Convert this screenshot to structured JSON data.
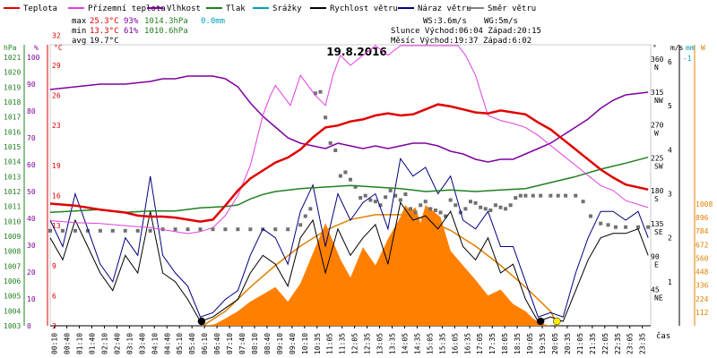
{
  "chart_data": {
    "type": "line",
    "title": "19.8.2016",
    "xlabel": "čas",
    "x_ticks": [
      "00:10",
      "00:40",
      "01:10",
      "01:40",
      "02:10",
      "02:40",
      "03:10",
      "03:40",
      "04:10",
      "04:40",
      "05:10",
      "05:40",
      "06:10",
      "06:40",
      "07:10",
      "07:40",
      "08:10",
      "08:40",
      "09:10",
      "09:40",
      "10:10",
      "10:35",
      "11:05",
      "11:35",
      "12:05",
      "12:35",
      "13:05",
      "13:35",
      "14:05",
      "14:35",
      "15:05",
      "15:35",
      "16:05",
      "16:35",
      "17:05",
      "17:35",
      "18:05",
      "18:35",
      "19:05",
      "19:35",
      "20:05",
      "20:35",
      "21:05",
      "21:35",
      "22:05",
      "22:35",
      "23:05",
      "23:35"
    ],
    "legend": [
      {
        "name": "Teplota",
        "color": "#e00000"
      },
      {
        "name": "Přízemní teplota",
        "color": "#e040e0"
      },
      {
        "name": "Vlhkost",
        "color": "#8000a0"
      },
      {
        "name": "Tlak",
        "color": "#208020"
      },
      {
        "name": "Srážky",
        "color": "#00a0c0"
      },
      {
        "name": "Rychlost větru",
        "color": "#000000"
      },
      {
        "name": "Náraz větru",
        "color": "#000080"
      },
      {
        "name": "Směr větru",
        "color": "#808080"
      }
    ],
    "stats": {
      "max_label": "max",
      "min_label": "min",
      "avg_label": "avg",
      "max_temp": "25.3°C",
      "max_hum": "93%",
      "max_press": "1014.3hPa",
      "max_rain": "0.0mm",
      "min_temp": "13.3°C",
      "min_hum": "61%",
      "min_press": "1010.6hPa",
      "avg_temp": "19.7°C",
      "ws": "WS:3.6m/s",
      "wg": "WG:5m/s",
      "sun": "Slunce Východ:06:04  Západ:20:15",
      "moon": "Měsíc  Východ:19:37  Západ:6:02"
    },
    "axes": {
      "hpa": {
        "label": "hPa",
        "ticks": [
          "1003",
          "1004",
          "1005",
          "1006",
          "1007",
          "1008",
          "1009",
          "1010",
          "1011",
          "1012",
          "1013",
          "1014",
          "1015",
          "1016",
          "1017",
          "1018",
          "1019",
          "1020",
          "1021"
        ],
        "range": [
          1003,
          1021.5
        ]
      },
      "humidity": {
        "label": "%",
        "ticks": [
          "0",
          "10",
          "20",
          "30",
          "40",
          "50",
          "60",
          "70",
          "80",
          "90",
          "100"
        ],
        "range": [
          0,
          105
        ]
      },
      "temp": {
        "label": "°C",
        "ticks": [
          "3",
          "6",
          "9",
          "13",
          "16",
          "19",
          "23",
          "26",
          "29",
          "32"
        ],
        "range": [
          3,
          33
        ]
      },
      "direction": {
        "label": "°",
        "ticks": [
          {
            "v": "45",
            "d": "NE"
          },
          {
            "v": "90",
            "d": "E"
          },
          {
            "v": "135",
            "d": "SE"
          },
          {
            "v": "180",
            "d": "S"
          },
          {
            "v": "225",
            "d": "SW"
          },
          {
            "v": "270",
            "d": "W"
          },
          {
            "v": "315",
            "d": "NW"
          },
          {
            "v": "360",
            "d": "N"
          }
        ]
      },
      "wind": {
        "label": "m/s",
        "ticks": [
          "1",
          "2",
          "3",
          "4",
          "5",
          "6"
        ]
      },
      "rain": {
        "label": "mm",
        "ticks": [
          "-1"
        ]
      },
      "solar": {
        "label": "W",
        "ticks": [
          "112",
          "224",
          "336",
          "448",
          "560",
          "672",
          "784",
          "896",
          "1008"
        ]
      }
    },
    "series": [
      {
        "name": "Teplota",
        "unit": "°C",
        "x": [
          0,
          1,
          2,
          3,
          3.5,
          4,
          4.5,
          5,
          5.5,
          6,
          6.5,
          7,
          7.5,
          8,
          8.5,
          9,
          9.5,
          10,
          10.5,
          11,
          11.5,
          12,
          12.5,
          13,
          13.5,
          14,
          14.5,
          15,
          15.5,
          16,
          16.5,
          17,
          17.5,
          18,
          18.5,
          19,
          19.5,
          20,
          20.5,
          21,
          21.5,
          22,
          22.5,
          23,
          23.9
        ],
        "y": [
          15.2,
          15,
          14.6,
          14.3,
          14,
          13.9,
          13.9,
          13.8,
          13.6,
          13.4,
          13.6,
          15,
          16.5,
          17.7,
          18.5,
          19.3,
          19.8,
          20.6,
          21.8,
          22.8,
          23,
          23.4,
          23.6,
          24,
          24.2,
          24,
          24.1,
          24.6,
          25.1,
          24.9,
          24.6,
          24.3,
          24.2,
          24.5,
          24.3,
          24.1,
          23.3,
          22.6,
          21.6,
          20.6,
          19.6,
          18.6,
          17.8,
          17.1,
          16.6
        ]
      },
      {
        "name": "Přízemní teplota",
        "unit": "°C",
        "x": [
          0,
          1,
          2,
          3,
          3.5,
          4,
          4.5,
          5,
          5.5,
          6,
          6.5,
          7,
          7.5,
          8,
          8.2,
          8.5,
          8.8,
          9,
          9.3,
          9.6,
          10,
          10.3,
          10.6,
          11,
          11.3,
          11.6,
          12,
          12.5,
          13,
          13.5,
          14,
          14.2,
          14.5,
          14.8,
          15,
          15.5,
          16,
          16.3,
          16.6,
          17,
          17.5,
          18,
          18.5,
          19,
          19.5,
          20,
          20.5,
          21,
          21.5,
          22,
          22.5,
          23,
          23.9
        ],
        "y": [
          13.5,
          13.3,
          13.2,
          13,
          12.9,
          12.8,
          12.6,
          12.4,
          12.2,
          12.4,
          12.8,
          14,
          16,
          19,
          21,
          24,
          26,
          27,
          26,
          25,
          28,
          27,
          26,
          25,
          28,
          30,
          29,
          30,
          32,
          30,
          31,
          33,
          35,
          34,
          33,
          32,
          33,
          33,
          30,
          28,
          24,
          23.5,
          23.2,
          22.8,
          22,
          21,
          20,
          19,
          18,
          17,
          16.5,
          15.5,
          14.8
        ]
      },
      {
        "name": "Vlhkost",
        "unit": "%",
        "x": [
          0,
          1,
          2,
          3,
          4,
          4.5,
          5,
          5.5,
          6,
          6.5,
          7,
          7.5,
          8,
          8.5,
          9,
          9.5,
          10,
          10.5,
          11,
          11.5,
          12,
          12.5,
          13,
          13.5,
          14,
          14.5,
          15,
          15.5,
          16,
          16.5,
          17,
          17.5,
          18,
          18.5,
          19,
          19.5,
          20,
          20.5,
          21,
          21.5,
          22,
          22.5,
          23,
          23.9
        ],
        "y": [
          88,
          89,
          90,
          90,
          91,
          92,
          92,
          93,
          93,
          93,
          92,
          89,
          83,
          78,
          74,
          70,
          68,
          67,
          66,
          68,
          67,
          66,
          67,
          66,
          67,
          68,
          68,
          67,
          65,
          64,
          62,
          61,
          62,
          62,
          64,
          66,
          68,
          71,
          74,
          77,
          81,
          84,
          86,
          87
        ]
      },
      {
        "name": "Tlak",
        "unit": "hPa",
        "x": [
          0,
          1,
          2,
          3,
          4,
          5,
          6,
          7,
          7.5,
          8,
          8.5,
          9,
          10,
          11,
          12,
          13,
          14,
          15,
          16,
          17,
          18,
          19,
          20,
          21,
          22,
          23,
          23.9
        ],
        "y": [
          1010.6,
          1010.7,
          1010.8,
          1010.6,
          1010.7,
          1010.7,
          1010.9,
          1011,
          1011.1,
          1011.5,
          1011.8,
          1012,
          1012.2,
          1012.3,
          1012.4,
          1012.3,
          1012.2,
          1012,
          1012.1,
          1012,
          1012.1,
          1012.2,
          1012.6,
          1013,
          1013.5,
          1013.9,
          1014.3
        ]
      },
      {
        "name": "Směr větru",
        "unit": "°",
        "style": "points",
        "x": [
          0,
          0.5,
          1,
          1.5,
          2,
          2.5,
          3,
          3.5,
          4,
          4.5,
          5,
          5.5,
          6,
          6.5,
          7,
          7.5,
          8,
          8.5,
          9,
          9.5,
          10,
          10.2,
          10.4,
          10.6,
          10.8,
          11,
          11.2,
          11.4,
          11.6,
          11.8,
          12,
          12.2,
          12.4,
          12.6,
          12.8,
          13,
          13.2,
          13.4,
          13.6,
          13.8,
          14,
          14.2,
          14.4,
          14.6,
          14.8,
          15,
          15.2,
          15.4,
          15.6,
          15.8,
          16,
          16.2,
          16.4,
          16.6,
          16.8,
          17,
          17.2,
          17.4,
          17.6,
          17.8,
          18,
          18.2,
          18.4,
          18.6,
          18.8,
          19,
          19.3,
          19.6,
          20,
          20.3,
          20.6,
          21,
          21.3,
          21.6,
          22,
          22.3,
          22.6,
          23,
          23.5,
          23.9
        ],
        "y": [
          130,
          130,
          130,
          130,
          130,
          130,
          130,
          130,
          130,
          132,
          132,
          132,
          132,
          132,
          132,
          132,
          132,
          132,
          132,
          132,
          138,
          150,
          160,
          318,
          320,
          285,
          250,
          240,
          205,
          210,
          200,
          190,
          175,
          178,
          172,
          170,
          165,
          176,
          185,
          178,
          172,
          180,
          160,
          155,
          165,
          170,
          160,
          158,
          155,
          150,
          172,
          165,
          155,
          160,
          170,
          168,
          162,
          160,
          158,
          165,
          162,
          160,
          165,
          175,
          178,
          178,
          178,
          178,
          178,
          178,
          178,
          178,
          170,
          150,
          140,
          138,
          135,
          135,
          135,
          135
        ]
      },
      {
        "name": "Rychlost větru",
        "unit": "m/s",
        "x": [
          0,
          0.5,
          1,
          1.5,
          2,
          2.5,
          3,
          3.5,
          4,
          4.5,
          5,
          5.5,
          6,
          6.5,
          7,
          7.5,
          8,
          8.5,
          9,
          9.5,
          10,
          10.5,
          11,
          11.5,
          12,
          12.5,
          13,
          13.5,
          14,
          14.5,
          15,
          15.5,
          16,
          16.5,
          17,
          17.5,
          18,
          18.5,
          19,
          19.5,
          20,
          20.5,
          21,
          21.5,
          22,
          22.5,
          23,
          23.5,
          23.9
        ],
        "y": [
          2.0,
          1.5,
          2.4,
          1.8,
          1.2,
          0.8,
          1.6,
          1.2,
          2.6,
          1.2,
          1.0,
          0.6,
          0.1,
          0.2,
          0.4,
          0.6,
          1.2,
          1.6,
          1.4,
          0.9,
          2.0,
          2.4,
          1.2,
          2.2,
          1.6,
          2.0,
          2.3,
          1.4,
          2.8,
          2.4,
          2.5,
          2.2,
          2.6,
          1.8,
          1.5,
          2.0,
          1.2,
          1.4,
          0.6,
          0.1,
          0.2,
          0.1,
          0.8,
          1.5,
          2.0,
          2.1,
          2.1,
          2.2,
          1.6
        ]
      },
      {
        "name": "Náraz větru",
        "unit": "m/s",
        "x": [
          0,
          0.5,
          1,
          1.5,
          2,
          2.5,
          3,
          3.5,
          4,
          4.5,
          5,
          5.5,
          6,
          6.5,
          7,
          7.5,
          8,
          8.5,
          9,
          9.5,
          10,
          10.5,
          11,
          11.5,
          12,
          12.5,
          13,
          13.5,
          14,
          14.5,
          15,
          15.5,
          16,
          16.5,
          17,
          17.5,
          18,
          18.5,
          19,
          19.5,
          20,
          20.5,
          21,
          21.5,
          22,
          22.5,
          23,
          23.5,
          23.9
        ],
        "y": [
          2.4,
          1.8,
          3.0,
          2.2,
          1.4,
          1.0,
          2.0,
          1.6,
          3.4,
          1.6,
          1.2,
          0.9,
          0.2,
          0.3,
          0.6,
          0.8,
          1.6,
          2.2,
          2.0,
          1.4,
          2.6,
          3.2,
          1.8,
          3.0,
          2.4,
          2.8,
          3.0,
          2.2,
          3.8,
          3.4,
          3.6,
          3.0,
          3.4,
          2.4,
          2.2,
          2.6,
          1.8,
          1.8,
          1.0,
          0.2,
          0.3,
          0.2,
          1.2,
          2.0,
          2.6,
          2.6,
          2.4,
          2.6,
          2.0
        ]
      },
      {
        "name": "Sluneční záření",
        "unit": "W/m2",
        "style": "area",
        "color": "#ff8000",
        "x": [
          0,
          6.2,
          6.6,
          7,
          7.5,
          8,
          8.5,
          9,
          9.5,
          10,
          10.5,
          11,
          11.3,
          11.6,
          12,
          12.5,
          13,
          13.5,
          14,
          14.2,
          14.4,
          14.6,
          14.8,
          15,
          15.3,
          15.6,
          16,
          16.5,
          17,
          17.5,
          18,
          18.5,
          19,
          19.3,
          19.6,
          20,
          23.9
        ],
        "y": [
          0,
          0,
          15,
          60,
          120,
          200,
          260,
          320,
          200,
          350,
          600,
          850,
          700,
          550,
          400,
          650,
          500,
          720,
          900,
          1000,
          950,
          980,
          850,
          1000,
          950,
          900,
          620,
          500,
          380,
          250,
          300,
          180,
          120,
          60,
          20,
          0,
          0
        ]
      },
      {
        "name": "Teoretické záření",
        "unit": "W/m2",
        "color": "#e08000",
        "x": [
          6.1,
          7,
          8,
          9,
          10,
          11,
          12,
          13,
          14,
          14.5,
          15,
          16,
          17,
          18,
          19,
          20,
          20.3
        ],
        "y": [
          0,
          120,
          320,
          500,
          660,
          790,
          880,
          920,
          920,
          910,
          880,
          790,
          660,
          500,
          320,
          120,
          0
        ]
      }
    ],
    "markers": [
      {
        "name": "moon_set",
        "x": 6.05,
        "color": "#000000"
      },
      {
        "name": "moon_rise",
        "x": 19.6,
        "color": "#000000"
      },
      {
        "name": "sun_set",
        "x": 20.25,
        "color": "#ffee00"
      }
    ]
  }
}
